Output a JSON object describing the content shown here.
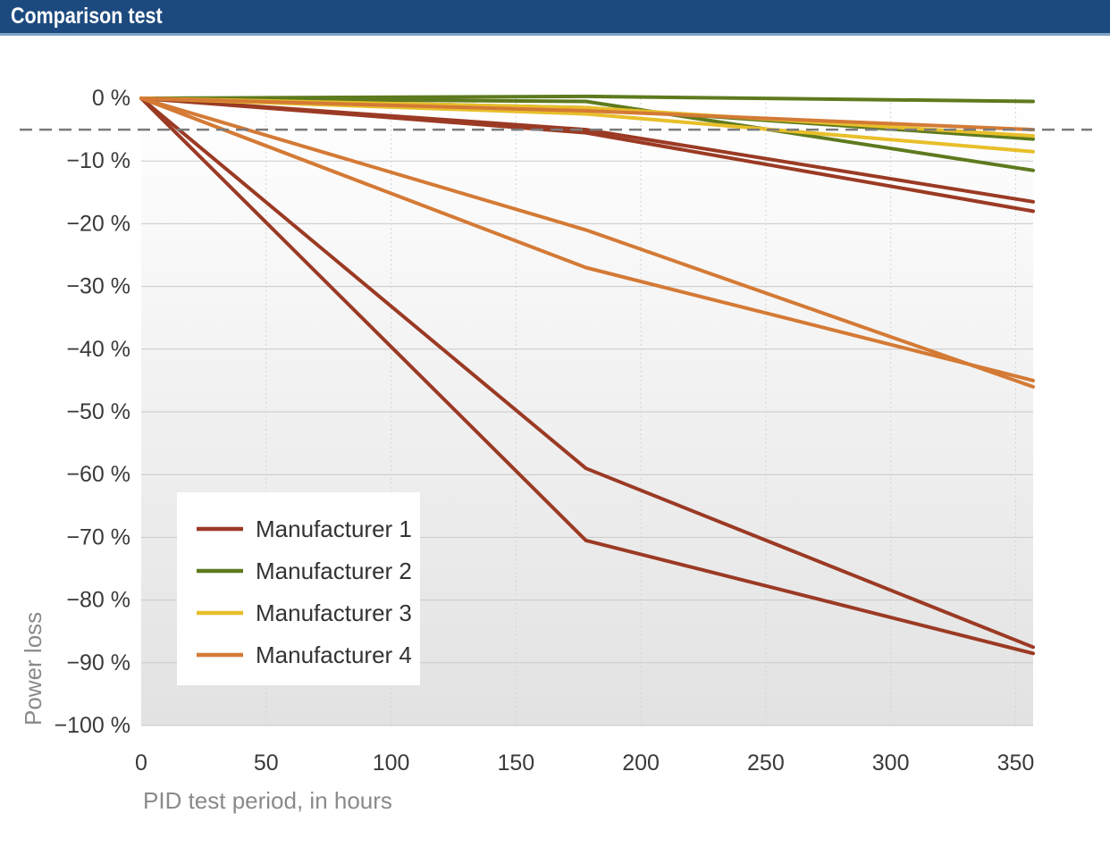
{
  "header": {
    "title": "Comparison test"
  },
  "chart_data": {
    "type": "line",
    "xlabel": "PID test period, in hours",
    "ylabel": "Power loss",
    "xlim": [
      0,
      357
    ],
    "ylim": [
      -100,
      0
    ],
    "x_ticks": [
      0,
      50,
      100,
      150,
      200,
      250,
      300,
      350
    ],
    "x_tick_labels": [
      "0",
      "50",
      "100",
      "150",
      "200",
      "250",
      "300",
      "350"
    ],
    "y_ticks": [
      0,
      -10,
      -20,
      -30,
      -40,
      -50,
      -60,
      -70,
      -80,
      -90,
      -100
    ],
    "y_tick_labels": [
      "0 %",
      "−10 %",
      "−20 %",
      "−30 %",
      "−40 %",
      "−50 %",
      "−60 %",
      "−70 %",
      "−80 %",
      "−90 %",
      "−100 %"
    ],
    "reference_line": {
      "y": -5,
      "style": "dashed",
      "color": "#7a7a7a"
    },
    "grid": true,
    "legend_position": "bottom-left",
    "series": [
      {
        "name": "Manufacturer 1",
        "color": "#9b3a24",
        "x": [
          0,
          178,
          357
        ],
        "y": [
          0,
          -59,
          -87.5
        ]
      },
      {
        "name": "Manufacturer 1",
        "color": "#9b3a24",
        "x": [
          0,
          178,
          357
        ],
        "y": [
          0,
          -70.5,
          -88.5
        ]
      },
      {
        "name": "Manufacturer 1",
        "color": "#9b3a24",
        "x": [
          0,
          178,
          357
        ],
        "y": [
          0,
          -5,
          -16.5
        ]
      },
      {
        "name": "Manufacturer 1",
        "color": "#9b3a24",
        "x": [
          0,
          178,
          357
        ],
        "y": [
          0,
          -5.5,
          -18
        ]
      },
      {
        "name": "Manufacturer 2",
        "color": "#5e7a1e",
        "x": [
          0,
          178,
          357
        ],
        "y": [
          0,
          0.3,
          -0.5
        ]
      },
      {
        "name": "Manufacturer 2",
        "color": "#5e7a1e",
        "x": [
          0,
          178,
          357
        ],
        "y": [
          0,
          -0.5,
          -11.5
        ]
      },
      {
        "name": "Manufacturer 2",
        "color": "#5e7a1e",
        "x": [
          0,
          178,
          357
        ],
        "y": [
          0,
          -1.5,
          -6.5
        ]
      },
      {
        "name": "Manufacturer 3",
        "color": "#e8bf2a",
        "x": [
          0,
          178,
          357
        ],
        "y": [
          0,
          -1.5,
          -6
        ]
      },
      {
        "name": "Manufacturer 3",
        "color": "#e8bf2a",
        "x": [
          0,
          178,
          357
        ],
        "y": [
          0,
          -2.5,
          -8.5
        ]
      },
      {
        "name": "Manufacturer 4",
        "color": "#d47a35",
        "x": [
          0,
          178,
          357
        ],
        "y": [
          0,
          -2,
          -5
        ]
      },
      {
        "name": "Manufacturer 4",
        "color": "#d47a35",
        "x": [
          0,
          178,
          357
        ],
        "y": [
          0,
          -21,
          -46
        ]
      },
      {
        "name": "Manufacturer 4",
        "color": "#d47a35",
        "x": [
          0,
          178,
          357
        ],
        "y": [
          0,
          -27,
          -45
        ]
      }
    ],
    "legend": [
      {
        "name": "Manufacturer 1",
        "color": "#9b3a24"
      },
      {
        "name": "Manufacturer 2",
        "color": "#5e7a1e"
      },
      {
        "name": "Manufacturer 3",
        "color": "#e8bf2a"
      },
      {
        "name": "Manufacturer 4",
        "color": "#d47a35"
      }
    ]
  }
}
